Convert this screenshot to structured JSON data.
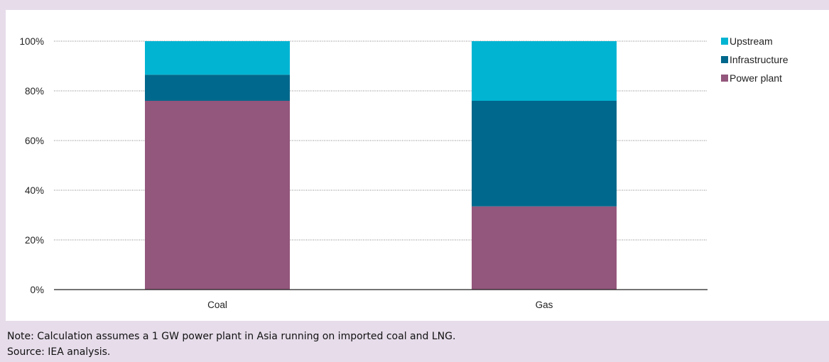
{
  "chart_data": {
    "type": "bar",
    "stacked": true,
    "categories": [
      "Coal",
      "Gas"
    ],
    "series": [
      {
        "name": "Power plant",
        "color": "#93567c",
        "values": [
          76,
          33.5
        ]
      },
      {
        "name": "Infrastructure",
        "color": "#00688c",
        "values": [
          10.5,
          42.5
        ]
      },
      {
        "name": "Upstream",
        "color": "#00b4d2",
        "values": [
          13.5,
          24
        ]
      }
    ],
    "ylim": [
      0,
      100
    ],
    "yticks": [
      0,
      20,
      40,
      60,
      80,
      100
    ],
    "ytick_format": "percent",
    "grid": true,
    "legend_position": "top-right",
    "legend_order": [
      "Upstream",
      "Infrastructure",
      "Power plant"
    ]
  },
  "footer": {
    "note": "Note: Calculation assumes a 1 GW power plant in Asia running on imported coal and LNG.",
    "source": "Source: IEA analysis."
  }
}
